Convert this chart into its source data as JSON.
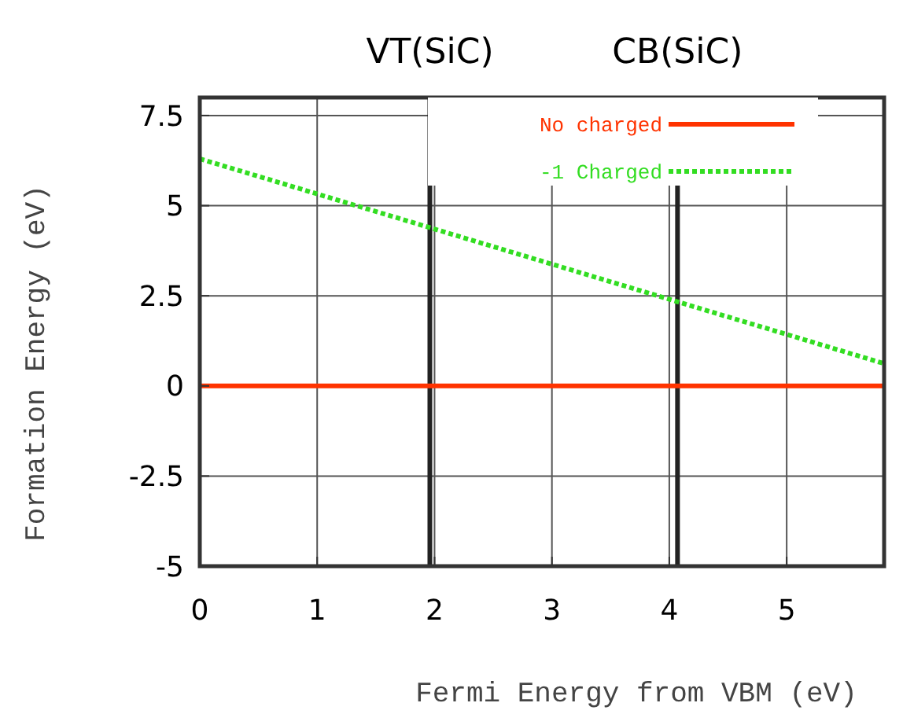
{
  "chart_data": {
    "type": "line",
    "xlabel": "Fermi Energy from VBM (eV)",
    "ylabel": "Formation Energy (eV)",
    "x": [
      0,
      5.83
    ],
    "series": [
      {
        "name": "No charged",
        "color": "#ff3300",
        "values": [
          0,
          0
        ],
        "line_style": "solid"
      },
      {
        "name": "-1 Charged",
        "color": "#33dd22",
        "values": [
          6.3,
          0.62
        ],
        "line_style": "dotted"
      }
    ],
    "xlim": [
      0,
      5.83
    ],
    "xticks": [
      0,
      1,
      2,
      3,
      4,
      5
    ],
    "ylim": [
      -5,
      8
    ],
    "yticks": [
      -5,
      -2.5,
      0,
      2.5,
      5,
      7.5
    ],
    "ref_lines": [
      {
        "axis": "x",
        "value": 1.96,
        "label": "VT(SiC)",
        "color": "#222222"
      },
      {
        "axis": "x",
        "value": 4.07,
        "label": "CB(SiC)",
        "color": "#222222"
      }
    ],
    "grid": true,
    "legend": "top right"
  }
}
